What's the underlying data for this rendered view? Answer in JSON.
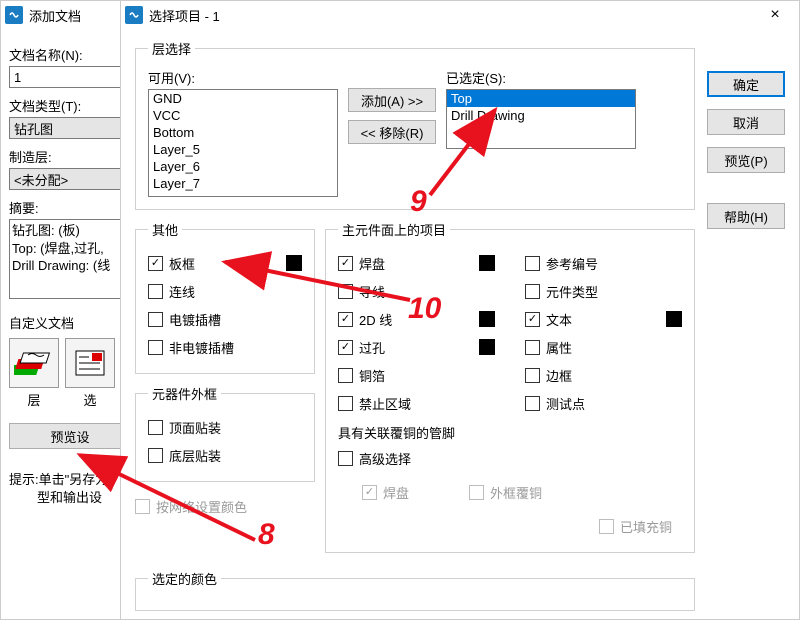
{
  "colors": {
    "accent": "#0078d7",
    "anno": "#e8121f"
  },
  "win1": {
    "title": "添加文档",
    "name_label": "文档名称(N):",
    "name_value": "1",
    "type_label": "文档类型(T):",
    "type_value": "钻孔图",
    "mfg_label": "制造层:",
    "mfg_value": "<未分配>",
    "summary_label": "摘要:",
    "summary_lines": [
      "钻孔图: (板)",
      "Top: (焊盘,过孔,",
      "Drill Drawing: (线"
    ],
    "custom_label": "自定义文档",
    "icon_labels": [
      "层",
      "选"
    ],
    "preview_btn": "预览设",
    "hint1": "提示:单击\"另存为",
    "hint2": "型和输出设"
  },
  "win2": {
    "title": "选择项目 - 1",
    "layer_section": "层选择",
    "available_label": "可用(V):",
    "available_items": [
      "GND",
      "VCC",
      "Bottom",
      "Layer_5",
      "Layer_6",
      "Layer_7"
    ],
    "selected_label": "已选定(S):",
    "selected_items": [
      "Top",
      "Drill Drawing"
    ],
    "add_btn": "添加(A) >>",
    "remove_btn": "<< 移除(R)",
    "ok": "确定",
    "cancel": "取消",
    "preview": "预览(P)",
    "help": "帮助(H)",
    "other_section": "其他",
    "other_items": [
      {
        "label": "板框",
        "checked": true,
        "swatch": true
      },
      {
        "label": "连线",
        "checked": false
      },
      {
        "label": "电镀插槽",
        "checked": false
      },
      {
        "label": "非电镀插槽",
        "checked": false
      }
    ],
    "outline_section": "元器件外框",
    "outline_items": [
      {
        "label": "顶面贴装",
        "checked": false
      },
      {
        "label": "底层贴装",
        "checked": false
      }
    ],
    "main_section": "主元件面上的项目",
    "main_left": [
      {
        "label": "焊盘",
        "checked": true,
        "swatch": true
      },
      {
        "label": "导线",
        "checked": false
      },
      {
        "label": "2D 线",
        "checked": true,
        "swatch": true
      },
      {
        "label": "过孔",
        "checked": true,
        "swatch": true
      },
      {
        "label": "铜箔",
        "checked": false
      },
      {
        "label": "禁止区域",
        "checked": false
      }
    ],
    "main_right": [
      {
        "label": "参考编号",
        "checked": false
      },
      {
        "label": "元件类型",
        "checked": false
      },
      {
        "label": "文本",
        "checked": true,
        "swatch": true
      },
      {
        "label": "属性",
        "checked": false
      },
      {
        "label": "边框",
        "checked": false
      },
      {
        "label": "测试点",
        "checked": false
      }
    ],
    "assoc_label": "具有关联覆铜的管脚",
    "adv_label": "高级选择",
    "adv_left": "焊盘",
    "adv_right": "外框覆铜",
    "net_color": "按网络设置颜色",
    "filled": "已填充铜",
    "sel_color_section": "选定的颜色"
  },
  "anno": {
    "n8": "8",
    "n9": "9",
    "n10": "10"
  }
}
